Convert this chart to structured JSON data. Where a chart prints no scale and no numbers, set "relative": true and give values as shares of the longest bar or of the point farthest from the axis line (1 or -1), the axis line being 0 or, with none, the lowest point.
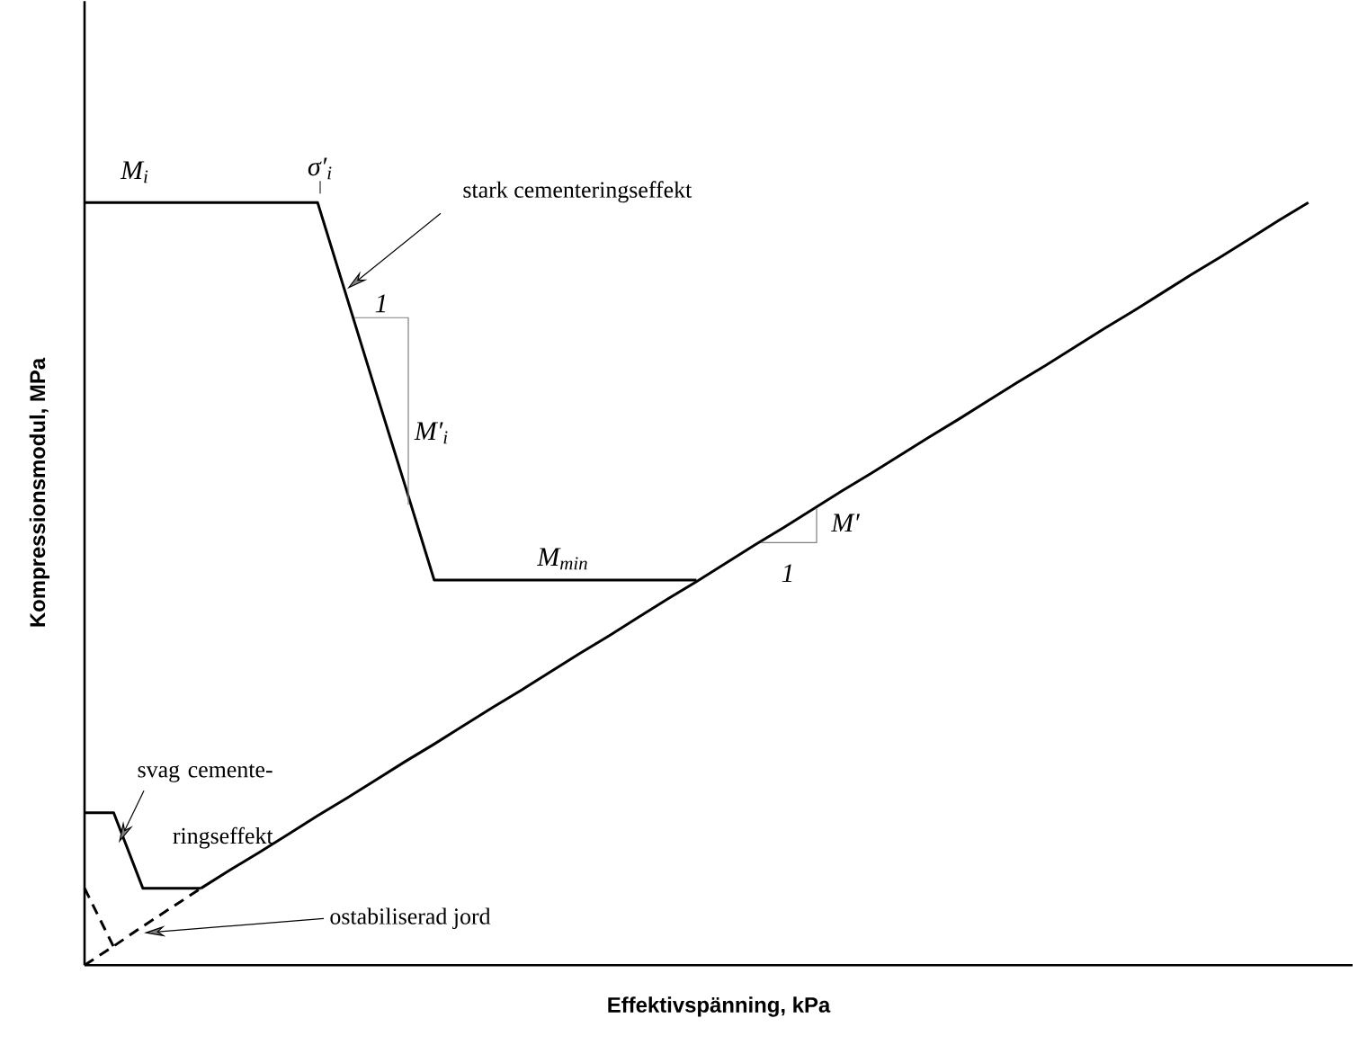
{
  "chart_data": {
    "type": "line",
    "relative": true,
    "xlabel": "Effektivspänning, kPa",
    "ylabel": "Kompressionsmodul, MPa",
    "marker": "none",
    "categories": [
      null,
      null,
      null,
      null,
      null,
      null,
      null,
      null,
      null,
      null,
      null,
      null,
      null,
      null,
      null,
      null,
      null,
      null,
      null,
      null,
      null,
      null,
      null,
      null,
      null,
      null,
      null,
      null,
      null,
      null,
      null,
      null,
      null,
      null,
      null,
      null,
      null,
      null,
      null,
      null,
      null,
      null,
      null
    ],
    "series": [
      {
        "color": "#000000",
        "line_style": "solid",
        "values": [
          1,
          1,
          1,
          1,
          1,
          1,
          1,
          1,
          1,
          0.876,
          0.752,
          0.629,
          0.505,
          0.505,
          0.505,
          0.505,
          0.505,
          0.505,
          0.505,
          0.505,
          0.505,
          0.505,
          null,
          null,
          null,
          null,
          null,
          null,
          null,
          null,
          null,
          null,
          null,
          null,
          null,
          null,
          null,
          null,
          null,
          null,
          null,
          null,
          null
        ]
      },
      {
        "color": "#000000",
        "line_style": "solid",
        "values": [
          0.2,
          0.2,
          0.101,
          0.101,
          0.101,
          null,
          null,
          null,
          null,
          null,
          null,
          null,
          null,
          null,
          null,
          null,
          null,
          null,
          null,
          null,
          null,
          null,
          null,
          null,
          null,
          null,
          null,
          null,
          null,
          null,
          null,
          null,
          null,
          null,
          null,
          null,
          null,
          null,
          null,
          null,
          null,
          null,
          null
        ]
      },
      {
        "color": "#000000",
        "line_style": "solid",
        "values": [
          null,
          null,
          null,
          null,
          0.101,
          0.125,
          0.148,
          0.172,
          0.196,
          0.219,
          0.243,
          0.267,
          0.29,
          0.314,
          0.338,
          0.361,
          0.385,
          0.409,
          0.432,
          0.456,
          0.48,
          0.503,
          0.527,
          0.551,
          0.574,
          0.598,
          0.622,
          0.645,
          0.669,
          0.693,
          0.716,
          0.74,
          0.764,
          0.787,
          0.811,
          0.835,
          0.858,
          0.882,
          0.906,
          0.929,
          0.953,
          0.977,
          1
        ]
      },
      {
        "color": "#000000",
        "line_style": "dashed",
        "values": [
          0,
          0.025,
          0.051,
          0.076,
          0.101,
          null,
          null,
          null,
          null,
          null,
          null,
          null,
          null,
          null,
          null,
          null,
          null,
          null,
          null,
          null,
          null,
          null,
          null,
          null,
          null,
          null,
          null,
          null,
          null,
          null,
          null,
          null,
          null,
          null,
          null,
          null,
          null,
          null,
          null,
          null,
          null,
          null,
          null
        ]
      },
      {
        "color": "#000000",
        "line_style": "dashed",
        "values": [
          0.101,
          0.024,
          null,
          null,
          null,
          null,
          null,
          null,
          null,
          null,
          null,
          null,
          null,
          null,
          null,
          null,
          null,
          null,
          null,
          null,
          null,
          null,
          null,
          null,
          null,
          null,
          null,
          null,
          null,
          null,
          null,
          null,
          null,
          null,
          null,
          null,
          null,
          null,
          null,
          null,
          null,
          null,
          null
        ]
      }
    ],
    "annotations": [
      "σ′$_{i}$",
      "stark cementeringseffekt",
      "M$_{i}$",
      "1",
      "M′$_{i}$",
      "M$_{min}$",
      "M′",
      "1",
      "svag cemente-ringseffekt",
      "ostabiliserad jord"
    ]
  }
}
